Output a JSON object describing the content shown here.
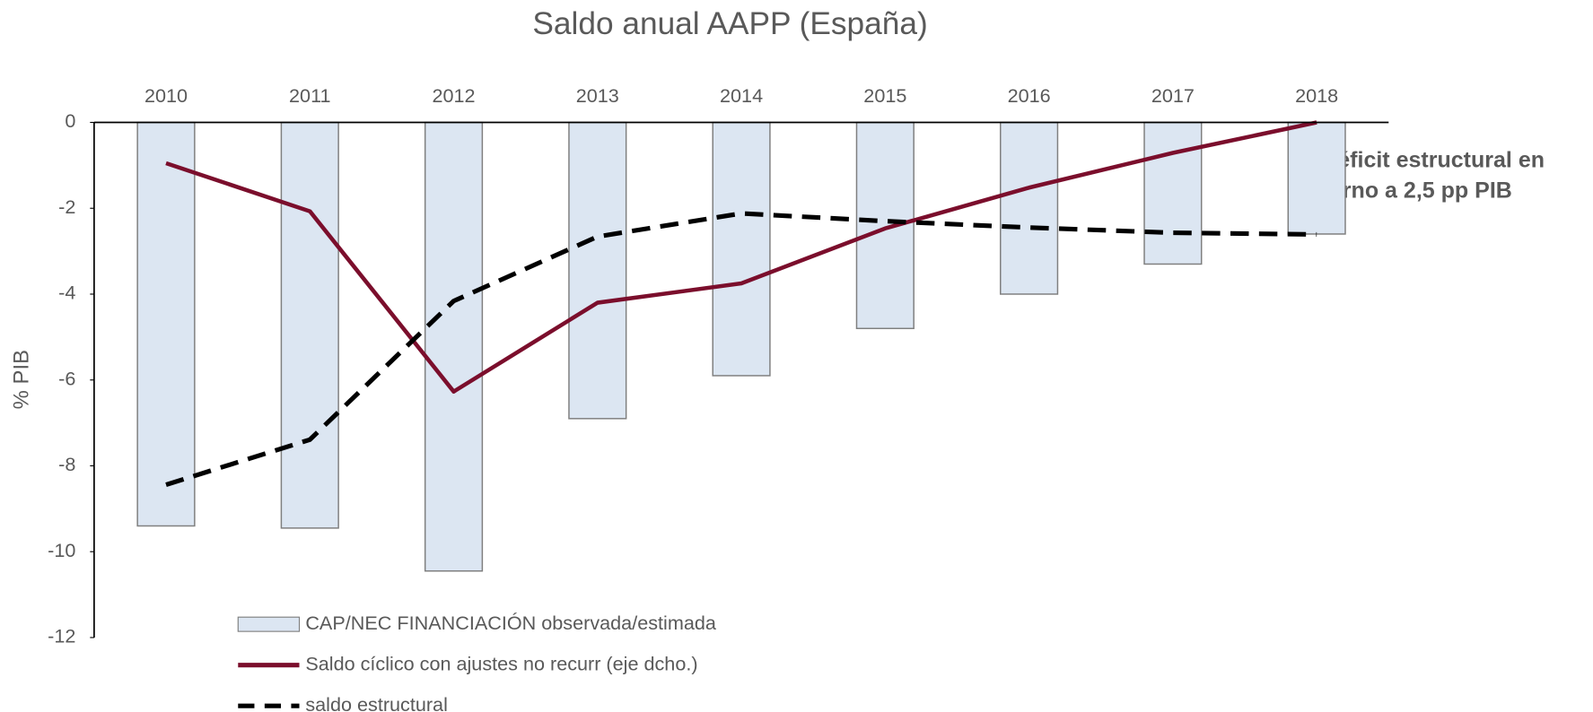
{
  "chart_data": {
    "type": "bar-line",
    "title": "Saldo anual AAPP (España)",
    "y_label": "% PIB",
    "categories": [
      "2010",
      "2011",
      "2012",
      "2013",
      "2014",
      "2015",
      "2016",
      "2017",
      "2018"
    ],
    "series": [
      {
        "name": "CAP/NEC FINANCIACIÓN observada/estimada",
        "kind": "bar",
        "color": "#dce6f2",
        "values": [
          -9.4,
          -9.45,
          -10.45,
          -6.9,
          -5.9,
          -4.8,
          -4.0,
          -3.3,
          -2.6
        ]
      },
      {
        "name": "Saldo cíclico con ajustes no recurr (eje dcho.)",
        "kind": "line",
        "color": "#7b0e2c",
        "values": [
          -0.95,
          -2.07,
          -6.27,
          -4.2,
          -3.75,
          -2.47,
          -1.52,
          -0.71,
          0
        ]
      },
      {
        "name": "saldo estructural",
        "kind": "dashed",
        "color": "#000000",
        "values": [
          -8.44,
          -7.39,
          -4.16,
          -2.66,
          -2.12,
          -2.3,
          -2.45,
          -2.57,
          -2.61
        ]
      }
    ],
    "ylim": [
      -12,
      0
    ],
    "yticks": [
      0,
      -2,
      -4,
      -6,
      -8,
      -10,
      -12
    ],
    "annotation": [
      "Déficit estructural en",
      "torno a 2,5 pp PIB"
    ]
  }
}
